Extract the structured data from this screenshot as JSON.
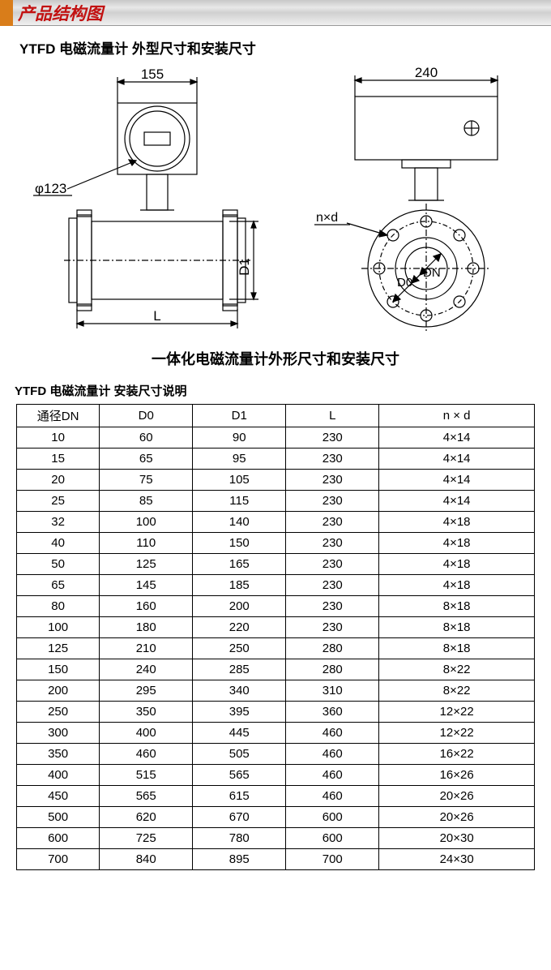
{
  "header": {
    "title": "产品结构图",
    "accent_color": "#d97d1a",
    "title_color": "#c21111"
  },
  "section_title": "YTFD 电磁流量计 外型尺寸和安装尺寸",
  "diagram_caption": "一体化电磁流量计外形尺寸和安装尺寸",
  "left_diagram": {
    "dim_top": "155",
    "dim_diameter": "φ123",
    "dim_height": "D1",
    "dim_length": "L",
    "stroke_color": "#000000",
    "background": "#ffffff"
  },
  "right_diagram": {
    "dim_top": "240",
    "dim_bolts": "n×d",
    "dim_d0": "D0",
    "dim_dn": "DN",
    "stroke_color": "#000000",
    "background": "#ffffff"
  },
  "table": {
    "title": "YTFD 电磁流量计 安装尺寸说明",
    "columns": [
      "通径DN",
      "D0",
      "D1",
      "L",
      "n × d"
    ],
    "col_widths_pct": [
      16,
      18,
      18,
      18,
      30
    ],
    "rows": [
      [
        "10",
        "60",
        "90",
        "230",
        "4×14"
      ],
      [
        "15",
        "65",
        "95",
        "230",
        "4×14"
      ],
      [
        "20",
        "75",
        "105",
        "230",
        "4×14"
      ],
      [
        "25",
        "85",
        "115",
        "230",
        "4×14"
      ],
      [
        "32",
        "100",
        "140",
        "230",
        "4×18"
      ],
      [
        "40",
        "110",
        "150",
        "230",
        "4×18"
      ],
      [
        "50",
        "125",
        "165",
        "230",
        "4×18"
      ],
      [
        "65",
        "145",
        "185",
        "230",
        "4×18"
      ],
      [
        "80",
        "160",
        "200",
        "230",
        "8×18"
      ],
      [
        "100",
        "180",
        "220",
        "230",
        "8×18"
      ],
      [
        "125",
        "210",
        "250",
        "280",
        "8×18"
      ],
      [
        "150",
        "240",
        "285",
        "280",
        "8×22"
      ],
      [
        "200",
        "295",
        "340",
        "310",
        "8×22"
      ],
      [
        "250",
        "350",
        "395",
        "360",
        "12×22"
      ],
      [
        "300",
        "400",
        "445",
        "460",
        "12×22"
      ],
      [
        "350",
        "460",
        "505",
        "460",
        "16×22"
      ],
      [
        "400",
        "515",
        "565",
        "460",
        "16×26"
      ],
      [
        "450",
        "565",
        "615",
        "460",
        "20×26"
      ],
      [
        "500",
        "620",
        "670",
        "600",
        "20×26"
      ],
      [
        "600",
        "725",
        "780",
        "600",
        "20×30"
      ],
      [
        "700",
        "840",
        "895",
        "700",
        "24×30"
      ]
    ],
    "border_color": "#000000",
    "cell_fontsize": 15
  }
}
